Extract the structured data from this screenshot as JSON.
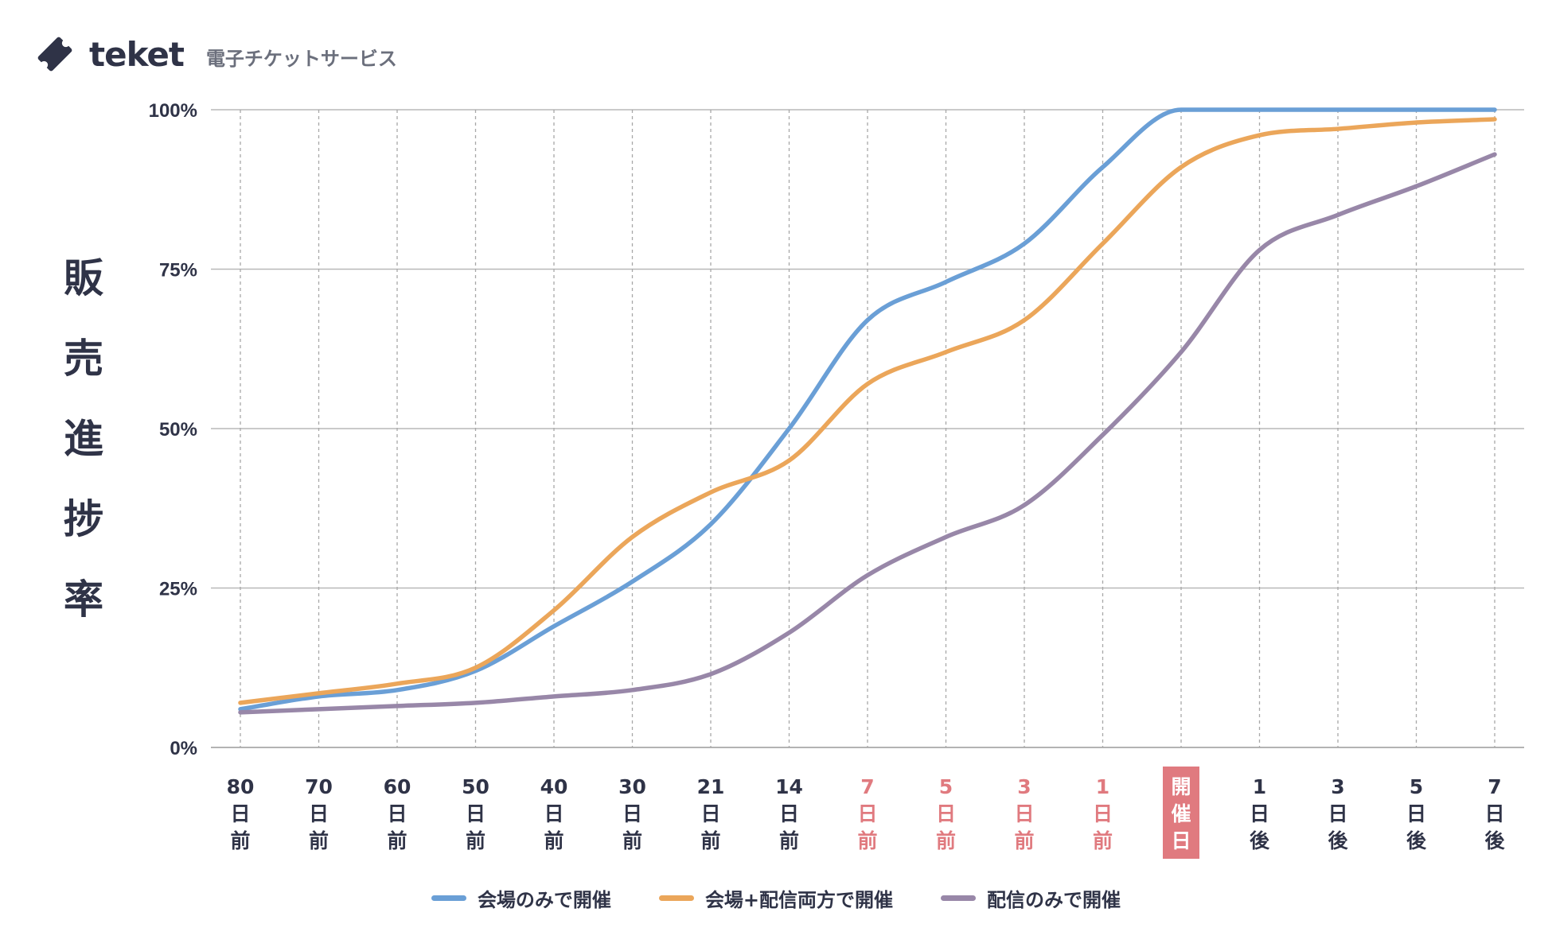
{
  "header": {
    "brand": "teket",
    "tagline": "電子チケットサービス",
    "icon": "ticket-icon"
  },
  "ylabel_chars": [
    "販",
    "売",
    "進",
    "捗",
    "率"
  ],
  "colors": {
    "highlight_text": "#e07a7f",
    "highlight_bg": "#e07a7f",
    "normal_text": "#2f3347"
  },
  "chart_data": {
    "type": "line",
    "ylabel": "販売進捗率",
    "ylim": [
      0,
      100
    ],
    "yticks": [
      0,
      25,
      50,
      75,
      100
    ],
    "ytick_labels": [
      "0%",
      "25%",
      "50%",
      "75%",
      "100%"
    ],
    "grid": true,
    "legend_position": "bottom",
    "categories": [
      {
        "lines": [
          "80",
          "日",
          "前"
        ],
        "style": "normal"
      },
      {
        "lines": [
          "70",
          "日",
          "前"
        ],
        "style": "normal"
      },
      {
        "lines": [
          "60",
          "日",
          "前"
        ],
        "style": "normal"
      },
      {
        "lines": [
          "50",
          "日",
          "前"
        ],
        "style": "normal"
      },
      {
        "lines": [
          "40",
          "日",
          "前"
        ],
        "style": "normal"
      },
      {
        "lines": [
          "30",
          "日",
          "前"
        ],
        "style": "normal"
      },
      {
        "lines": [
          "21",
          "日",
          "前"
        ],
        "style": "normal"
      },
      {
        "lines": [
          "14",
          "日",
          "前"
        ],
        "style": "normal"
      },
      {
        "lines": [
          "7",
          "日",
          "前"
        ],
        "style": "red"
      },
      {
        "lines": [
          "5",
          "日",
          "前"
        ],
        "style": "red"
      },
      {
        "lines": [
          "3",
          "日",
          "前"
        ],
        "style": "red"
      },
      {
        "lines": [
          "1",
          "日",
          "前"
        ],
        "style": "red"
      },
      {
        "lines": [
          "開",
          "催",
          "日"
        ],
        "style": "boxed"
      },
      {
        "lines": [
          "1",
          "日",
          "後"
        ],
        "style": "normal"
      },
      {
        "lines": [
          "3",
          "日",
          "後"
        ],
        "style": "normal"
      },
      {
        "lines": [
          "5",
          "日",
          "後"
        ],
        "style": "normal"
      },
      {
        "lines": [
          "7",
          "日",
          "後"
        ],
        "style": "normal"
      }
    ],
    "series": [
      {
        "name": "会場のみで開催",
        "color": "#6a9fd6",
        "values": [
          6,
          8,
          9,
          12,
          19,
          26,
          35,
          50,
          67,
          73,
          79,
          91,
          100,
          100,
          100,
          100,
          100
        ]
      },
      {
        "name": "会場+配信両方で開催",
        "color": "#eba65a",
        "values": [
          7,
          8.5,
          10,
          12.5,
          21.5,
          33,
          40,
          45,
          57,
          62,
          67,
          79,
          91,
          96,
          97,
          98,
          98.5
        ]
      },
      {
        "name": "配信のみで開催",
        "color": "#9887a8",
        "values": [
          5.5,
          6,
          6.5,
          7,
          8,
          9,
          11.5,
          18,
          27,
          33,
          38,
          49,
          62,
          78,
          83.5,
          88,
          93
        ]
      }
    ]
  }
}
